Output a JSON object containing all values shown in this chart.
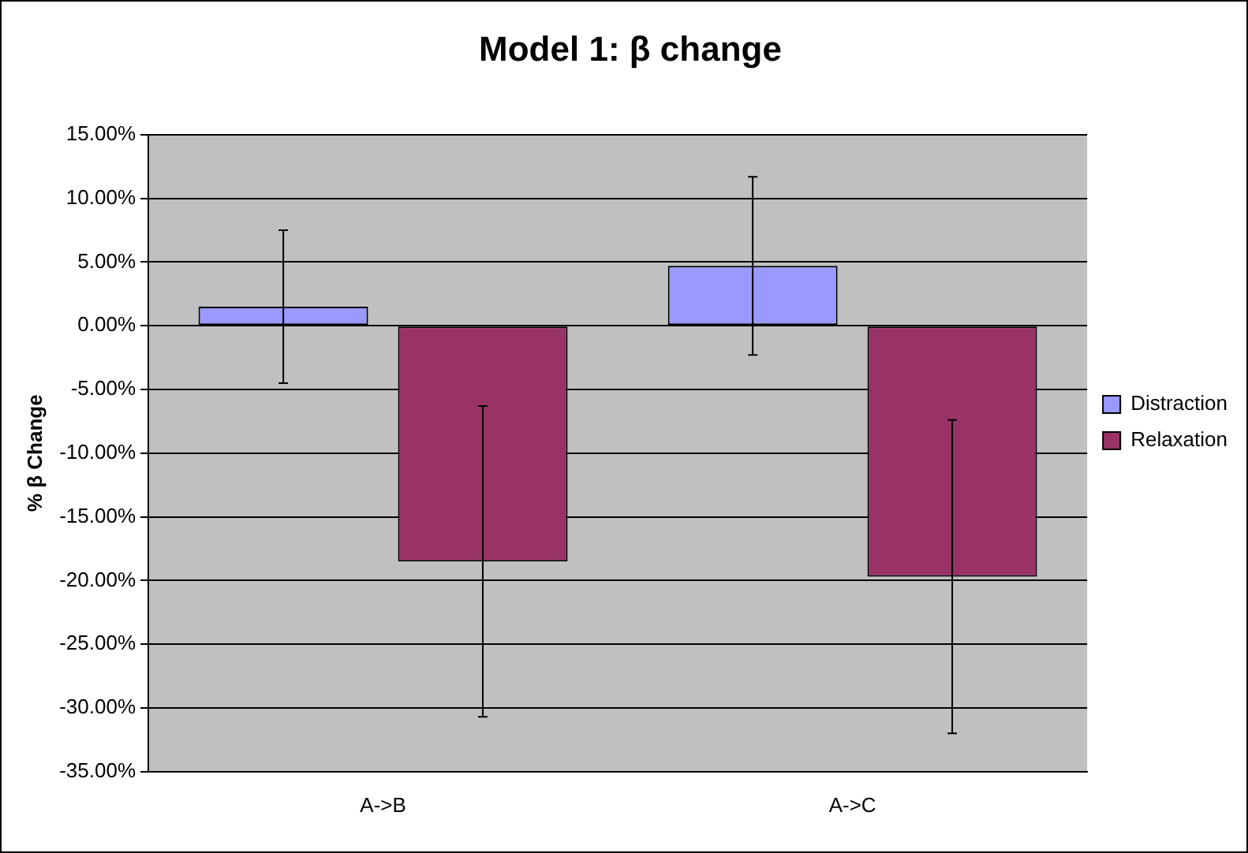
{
  "chart_data": {
    "type": "bar",
    "title": "Model 1: β change",
    "ylabel": "% β Change",
    "categories": [
      "A->B",
      "A->C"
    ],
    "series": [
      {
        "name": "Distraction",
        "color": "#9999ff",
        "values": [
          1.5,
          4.7
        ],
        "errors": [
          6.0,
          7.0
        ]
      },
      {
        "name": "Relaxation",
        "color": "#993366",
        "values": [
          -18.5,
          -19.7
        ],
        "errors": [
          12.2,
          12.3
        ]
      }
    ],
    "ylim": [
      -35,
      15
    ],
    "yticks": [
      {
        "value": -35,
        "label": "-35.00%"
      },
      {
        "value": -30,
        "label": "-30.00%"
      },
      {
        "value": -25,
        "label": "-25.00%"
      },
      {
        "value": -20,
        "label": "-20.00%"
      },
      {
        "value": -15,
        "label": "-15.00%"
      },
      {
        "value": -10,
        "label": "-10.00%"
      },
      {
        "value": -5,
        "label": "-5.00%"
      },
      {
        "value": 0,
        "label": "0.00%"
      },
      {
        "value": 5,
        "label": "5.00%"
      },
      {
        "value": 10,
        "label": "10.00%"
      },
      {
        "value": 15,
        "label": "15.00%"
      }
    ],
    "grid": "y",
    "legend": "right"
  }
}
